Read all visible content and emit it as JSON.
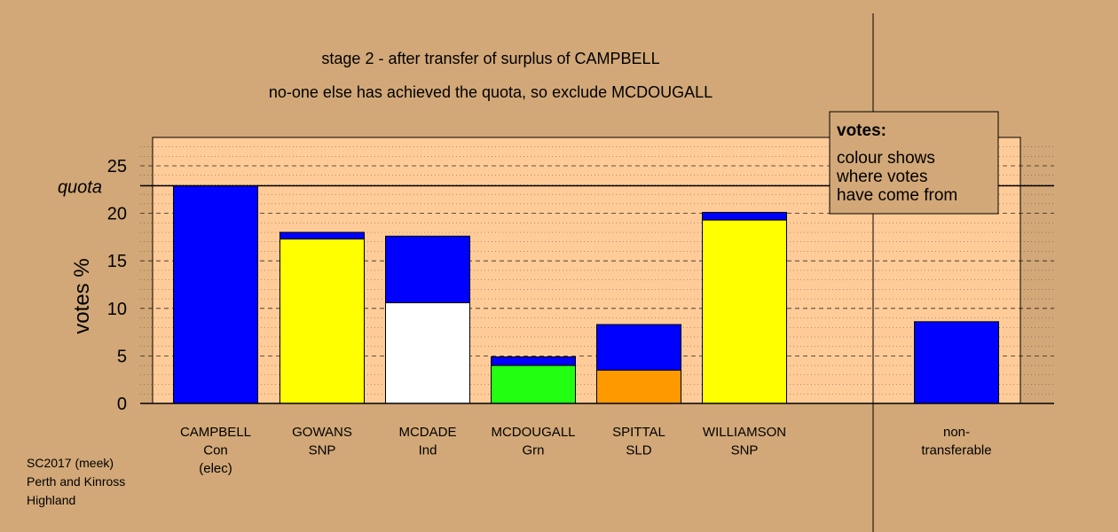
{
  "chart_data": {
    "type": "bar",
    "stacked": true,
    "title": "stage 2 - after transfer of surplus of CAMPBELL",
    "subtitle": "no-one else has achieved the quota, so exclude MCDOUGALL",
    "ylabel": "votes %",
    "ylim": [
      0,
      28
    ],
    "yticks": [
      0,
      5,
      10,
      15,
      20,
      25
    ],
    "quota": 22.9,
    "quota_label": "quota",
    "categories": [
      {
        "name": "CAMPBELL",
        "party": "Con",
        "note": "(elec)"
      },
      {
        "name": "GOWANS",
        "party": "SNP",
        "note": ""
      },
      {
        "name": "MCDADE",
        "party": "Ind",
        "note": ""
      },
      {
        "name": "MCDOUGALL",
        "party": "Grn",
        "note": ""
      },
      {
        "name": "SPITTAL",
        "party": "SLD",
        "note": ""
      },
      {
        "name": "WILLIAMSON",
        "party": "SNP",
        "note": ""
      },
      {
        "name": "non-",
        "party": "transferable",
        "note": ""
      }
    ],
    "bars": [
      [
        {
          "value": 22.9,
          "color": "#0000ff"
        }
      ],
      [
        {
          "value": 17.3,
          "color": "#ffff00"
        },
        {
          "value": 0.7,
          "color": "#0000ff"
        }
      ],
      [
        {
          "value": 10.6,
          "color": "#ffffff"
        },
        {
          "value": 7.0,
          "color": "#0000ff"
        }
      ],
      [
        {
          "value": 4.0,
          "color": "#22ff11"
        },
        {
          "value": 0.9,
          "color": "#0000ff"
        }
      ],
      [
        {
          "value": 3.5,
          "color": "#ff9900"
        },
        {
          "value": 4.8,
          "color": "#0000ff"
        }
      ],
      [
        {
          "value": 19.3,
          "color": "#ffff00"
        },
        {
          "value": 0.8,
          "color": "#0000ff"
        }
      ],
      [
        {
          "value": 8.6,
          "color": "#0000ff"
        }
      ]
    ],
    "legend": {
      "title": "votes:",
      "lines": [
        "colour shows",
        "where votes",
        "have come from"
      ],
      "position": "top-right"
    },
    "grid": true
  },
  "footer": {
    "lines": [
      "SC2017 (meek)",
      "Perth and Kinross",
      "Highland"
    ]
  },
  "colors": {
    "background": "#d2a878",
    "plot_area": "#ffcc99"
  }
}
